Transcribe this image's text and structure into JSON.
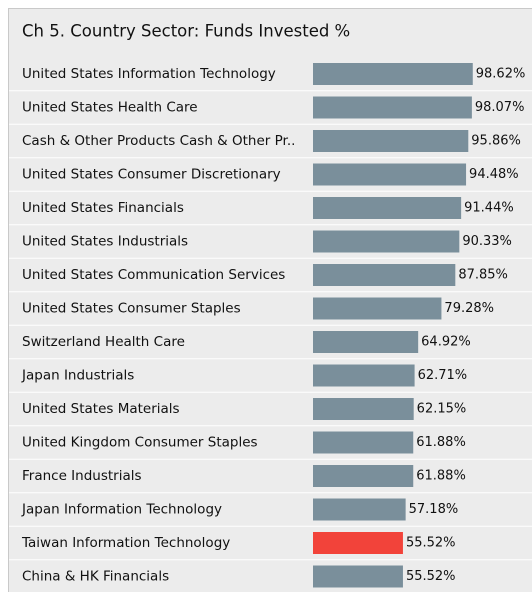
{
  "chart_data": {
    "type": "barh",
    "title": "Ch 5. Country Sector:  Funds Invested %",
    "categories": [
      "United States Information Technology",
      "United States Health Care",
      "Cash & Other Products Cash & Other Pr..",
      "United States Consumer Discretionary",
      "United States Financials",
      "United States Industrials",
      "United States Communication Services",
      "United States Consumer Staples",
      "Switzerland Health Care",
      "Japan Industrials",
      "United States Materials",
      "United Kingdom Consumer Staples",
      "France Industrials",
      "Japan Information Technology",
      "Taiwan Information Technology",
      "China & HK Financials"
    ],
    "values": [
      98.62,
      98.07,
      95.86,
      94.48,
      91.44,
      90.33,
      87.85,
      79.28,
      64.92,
      62.71,
      62.15,
      61.88,
      61.88,
      57.18,
      55.52,
      55.52
    ],
    "value_labels": [
      "98.62%",
      "98.07%",
      "95.86%",
      "94.48%",
      "91.44%",
      "90.33%",
      "87.85%",
      "79.28%",
      "64.92%",
      "62.71%",
      "62.15%",
      "61.88%",
      "61.88%",
      "57.18%",
      "55.52%",
      "55.52%"
    ],
    "colors": [
      "#7a8f9b",
      "#7a8f9b",
      "#7a8f9b",
      "#7a8f9b",
      "#7a8f9b",
      "#7a8f9b",
      "#7a8f9b",
      "#7a8f9b",
      "#7a8f9b",
      "#7a8f9b",
      "#7a8f9b",
      "#7a8f9b",
      "#7a8f9b",
      "#7a8f9b",
      "#f2433a",
      "#7a8f9b"
    ],
    "xlim": [
      0,
      100
    ]
  }
}
